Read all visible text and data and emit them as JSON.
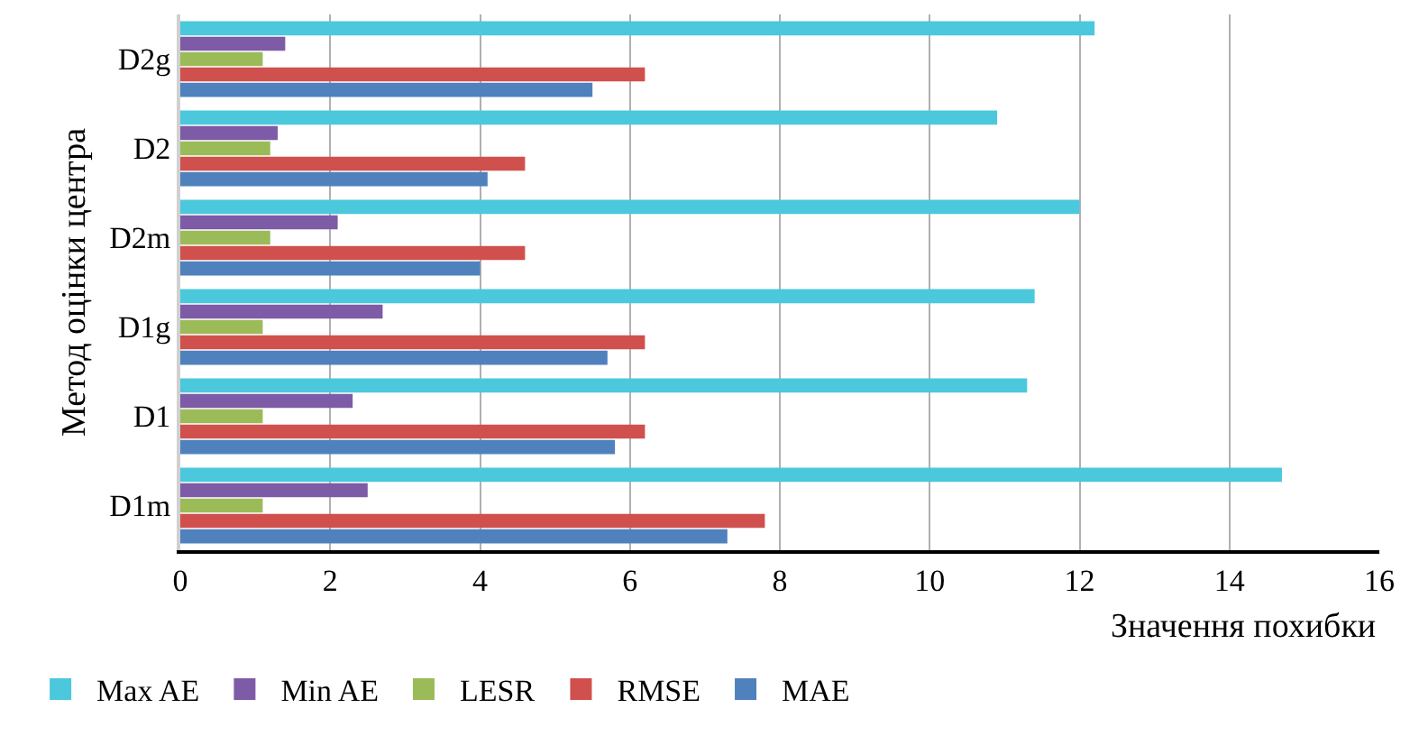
{
  "chart_data": {
    "type": "bar",
    "orientation": "horizontal",
    "xlabel": "Значення похибки",
    "ylabel": "Метод оцінки центра",
    "categories": [
      "D2g",
      "D2",
      "D2m",
      "D1g",
      "D1",
      "D1m"
    ],
    "series": [
      {
        "name": "Max AE",
        "color": "#4bc8dc",
        "values": [
          12.2,
          10.9,
          12.0,
          11.4,
          11.3,
          14.7
        ]
      },
      {
        "name": "Min AE",
        "color": "#7d5ba6",
        "values": [
          1.4,
          1.3,
          2.1,
          2.7,
          2.3,
          2.5
        ]
      },
      {
        "name": "LESR",
        "color": "#9bbb59",
        "values": [
          1.1,
          1.2,
          1.2,
          1.1,
          1.1,
          1.1
        ]
      },
      {
        "name": "RMSE",
        "color": "#d0504d",
        "values": [
          6.2,
          4.6,
          4.6,
          6.2,
          6.2,
          7.8
        ]
      },
      {
        "name": "MAE",
        "color": "#4f81bd",
        "values": [
          5.5,
          4.1,
          4.0,
          5.7,
          5.8,
          7.3
        ]
      }
    ],
    "xlim": [
      0,
      16
    ],
    "xticks": [
      0,
      2,
      4,
      6,
      8,
      10,
      12,
      14,
      16
    ],
    "grid": "x",
    "legend": "bottom"
  }
}
